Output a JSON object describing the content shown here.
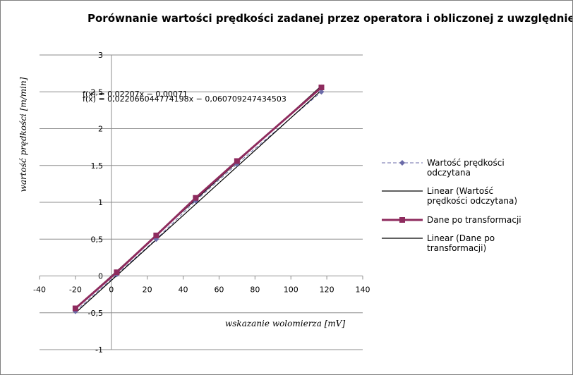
{
  "chart_data": {
    "type": "scatter",
    "title": "Porównanie wartości prędkości zadanej przez operatora i obliczonej z uwzględnieniem",
    "xlabel": "wskazanie wolomierza [mV]",
    "ylabel": "wartość prędkości [m/min]",
    "xlim": [
      -40,
      140
    ],
    "ylim": [
      -1,
      3
    ],
    "x_ticks": [
      "-40",
      "-20",
      "0",
      "20",
      "40",
      "60",
      "80",
      "100",
      "120",
      "140"
    ],
    "y_ticks": [
      "-1",
      "-0,5",
      "0",
      "0,5",
      "1",
      "1,5",
      "2",
      "2,5",
      "3"
    ],
    "grid": "horizontal",
    "legend_position": "right",
    "series": [
      {
        "name": "Wartość prędkości odczytana",
        "color": "#6b6ba8",
        "marker": "diamond",
        "line_style": "dashed",
        "x": [
          -20,
          3,
          25,
          47,
          70,
          117
        ],
        "y": [
          -0.48,
          0.02,
          0.5,
          1.02,
          1.52,
          2.5
        ]
      },
      {
        "name": "Linear (Wartość prędkości odczytana)",
        "color": "#000000",
        "type": "trendline",
        "slope": 0.02207,
        "intercept": -0.00071
      },
      {
        "name": "Dane po transformacji",
        "color": "#8e2b5e",
        "marker": "square",
        "line_style": "thick",
        "x": [
          -20,
          3,
          25,
          47,
          70,
          117
        ],
        "y": [
          -0.44,
          0.05,
          0.55,
          1.06,
          1.56,
          2.56
        ]
      },
      {
        "name": "Linear (Dane po transformacji)",
        "color": "#000000",
        "type": "trendline",
        "slope": 0.022066044774198,
        "intercept": -0.060709247434503
      }
    ],
    "annotations": [
      "f(x) = 0,02207x − 0,00071",
      "f(x) = 0,022066044774198x − 0,060709247434503"
    ]
  },
  "legend": [
    [
      "Wartość prędkości",
      "odczytana"
    ],
    [
      "Linear (Wartość",
      "prędkości odczytana)"
    ],
    [
      "Dane po transformacji"
    ],
    [
      "Linear (Dane po",
      "transformacji)"
    ]
  ]
}
